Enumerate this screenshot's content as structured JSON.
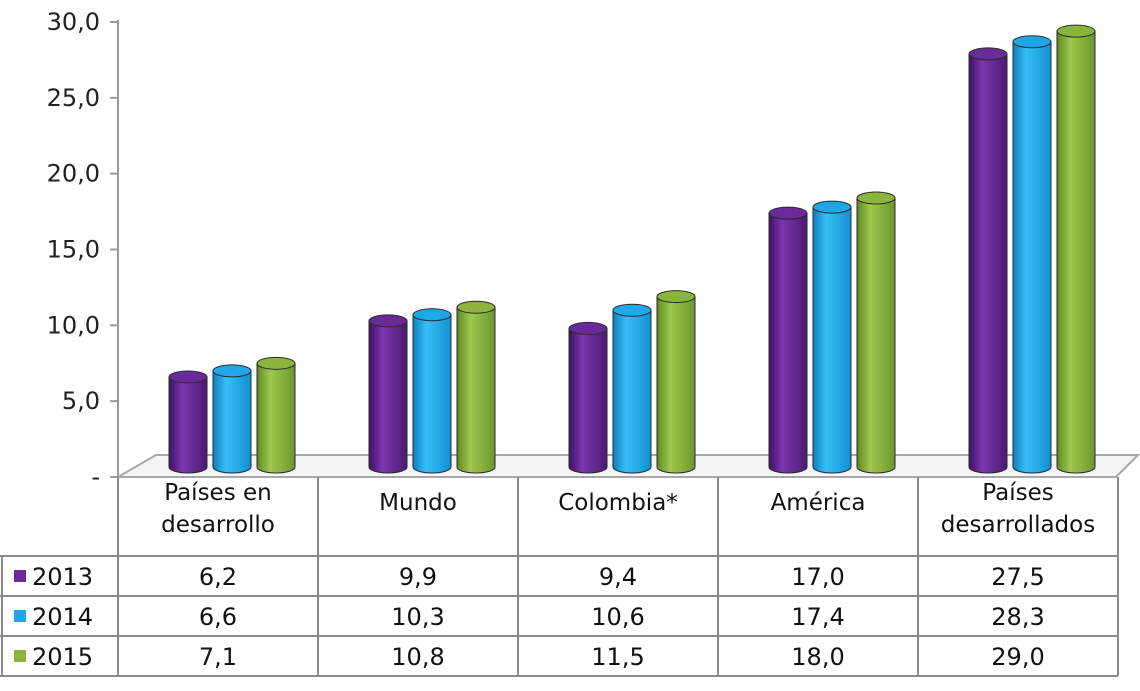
{
  "chart_data": {
    "type": "bar",
    "style": "3d-cylinder",
    "categories": [
      [
        "Países en",
        "desarrollo"
      ],
      [
        "Mundo"
      ],
      [
        "Colombia*"
      ],
      [
        "América"
      ],
      [
        "Países",
        "desarrollados"
      ]
    ],
    "series": [
      {
        "name": "2013",
        "color": "#6b2a9a",
        "values": [
          6.2,
          9.9,
          9.4,
          17.0,
          27.5
        ],
        "labels": [
          "6,2",
          "9,9",
          "9,4",
          "17,0",
          "27,5"
        ]
      },
      {
        "name": "2014",
        "color": "#1ea8ea",
        "values": [
          6.6,
          10.3,
          10.6,
          17.4,
          28.3
        ],
        "labels": [
          "6,6",
          "10,3",
          "10,6",
          "17,4",
          "28,3"
        ]
      },
      {
        "name": "2015",
        "color": "#8bb43c",
        "values": [
          7.1,
          10.8,
          11.5,
          18.0,
          29.0
        ],
        "labels": [
          "7,1",
          "10,8",
          "11,5",
          "18,0",
          "29,0"
        ]
      }
    ],
    "yticks": [
      "-",
      "5,0",
      "10,0",
      "15,0",
      "20,0",
      "25,0",
      "30,0"
    ],
    "ylim": [
      0,
      30
    ],
    "legend": "data-table-left",
    "grid": false
  }
}
